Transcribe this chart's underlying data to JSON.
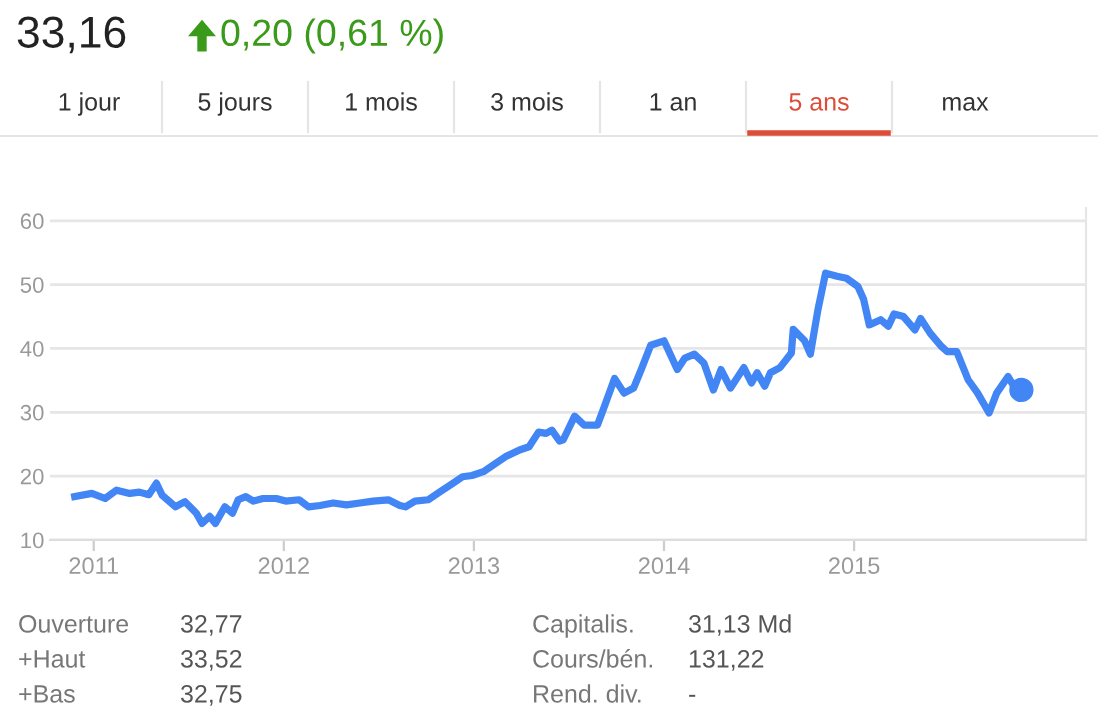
{
  "chart_data": {
    "type": "line",
    "title": "33,16",
    "subtitle": "0,20 (0,61 %)",
    "annotations": [
      "1 jour",
      "5 jours",
      "1 mois",
      "3 mois",
      "1 an",
      "5 ans",
      "max",
      "Ouverture",
      "32,77",
      "Capitalis.",
      "31,13 Md",
      "+Haut",
      "33,52",
      "Cours/bén.",
      "131,22",
      "+Bas",
      "32,75",
      "Rend. div.",
      "-"
    ],
    "xlim": [
      2010.77,
      2016.22
    ],
    "xticks": [
      2011,
      2012,
      2013,
      2014,
      2015
    ],
    "ylim": [
      10,
      62
    ],
    "yticks": [
      10,
      20,
      30,
      40,
      50,
      60
    ],
    "grid": "y",
    "marker": "none",
    "line_style": "solid",
    "series": [
      {
        "color": "#4285f4",
        "x": [
          2010.9,
          2010.99,
          2011.06,
          2011.12,
          2011.19,
          2011.24,
          2011.29,
          2011.33,
          2011.36,
          2011.43,
          2011.48,
          2011.54,
          2011.57,
          2011.61,
          2011.64,
          2011.69,
          2011.73,
          2011.76,
          2011.8,
          2011.84,
          2011.89,
          2011.96,
          2012.01,
          2012.08,
          2012.13,
          2012.19,
          2012.26,
          2012.33,
          2012.4,
          2012.47,
          2012.55,
          2012.61,
          2012.64,
          2012.69,
          2012.76,
          2012.82,
          2012.89,
          2012.94,
          2012.99,
          2013.05,
          2013.1,
          2013.17,
          2013.24,
          2013.29,
          2013.34,
          2013.38,
          2013.41,
          2013.45,
          2013.47,
          2013.53,
          2013.58,
          2013.65,
          2013.68,
          2013.74,
          2013.79,
          2013.84,
          2013.88,
          2013.93,
          2014.0,
          2014.07,
          2014.11,
          2014.16,
          2014.21,
          2014.26,
          2014.3,
          2014.35,
          2014.42,
          2014.46,
          2014.49,
          2014.53,
          2014.56,
          2014.61,
          2014.67,
          2014.68,
          2014.74,
          2014.77,
          2014.81,
          2014.85,
          2014.91,
          2014.96,
          2015.02,
          2015.05,
          2015.08,
          2015.14,
          2015.18,
          2015.21,
          2015.26,
          2015.32,
          2015.35,
          2015.4,
          2015.46,
          2015.49,
          2015.54,
          2015.6,
          2015.65,
          2015.71,
          2015.75,
          2015.81,
          2015.84,
          2015.88
        ],
        "values": [
          16.8,
          17.3,
          16.5,
          17.8,
          17.3,
          17.5,
          17.1,
          18.9,
          17.0,
          15.2,
          16.0,
          14.2,
          12.6,
          13.7,
          12.6,
          15.2,
          14.2,
          16.3,
          16.8,
          16.1,
          16.5,
          16.5,
          16.1,
          16.3,
          15.2,
          15.4,
          15.8,
          15.5,
          15.8,
          16.1,
          16.3,
          15.4,
          15.2,
          16.1,
          16.3,
          17.5,
          18.9,
          19.9,
          20.1,
          20.7,
          21.7,
          23.1,
          24.1,
          24.6,
          26.9,
          26.7,
          27.2,
          25.5,
          25.7,
          29.4,
          28.0,
          28.0,
          30.4,
          35.3,
          33.0,
          33.8,
          36.7,
          40.5,
          41.2,
          36.7,
          38.5,
          39.1,
          37.7,
          33.5,
          36.7,
          33.8,
          37.0,
          34.6,
          36.2,
          34.1,
          36.2,
          37.0,
          39.3,
          43.0,
          41.2,
          39.1,
          46.1,
          51.8,
          51.3,
          51.0,
          49.7,
          47.7,
          43.7,
          44.5,
          43.5,
          45.4,
          45.0,
          42.9,
          44.7,
          42.4,
          40.3,
          39.5,
          39.5,
          35.1,
          33.0,
          29.9,
          33.0,
          35.6,
          34.1,
          33.5
        ]
      },
      {
        "type": "scatter",
        "marker": "circle",
        "color": "#4285f4",
        "x": [
          2015.88
        ],
        "values": [
          33.5
        ]
      }
    ]
  }
}
